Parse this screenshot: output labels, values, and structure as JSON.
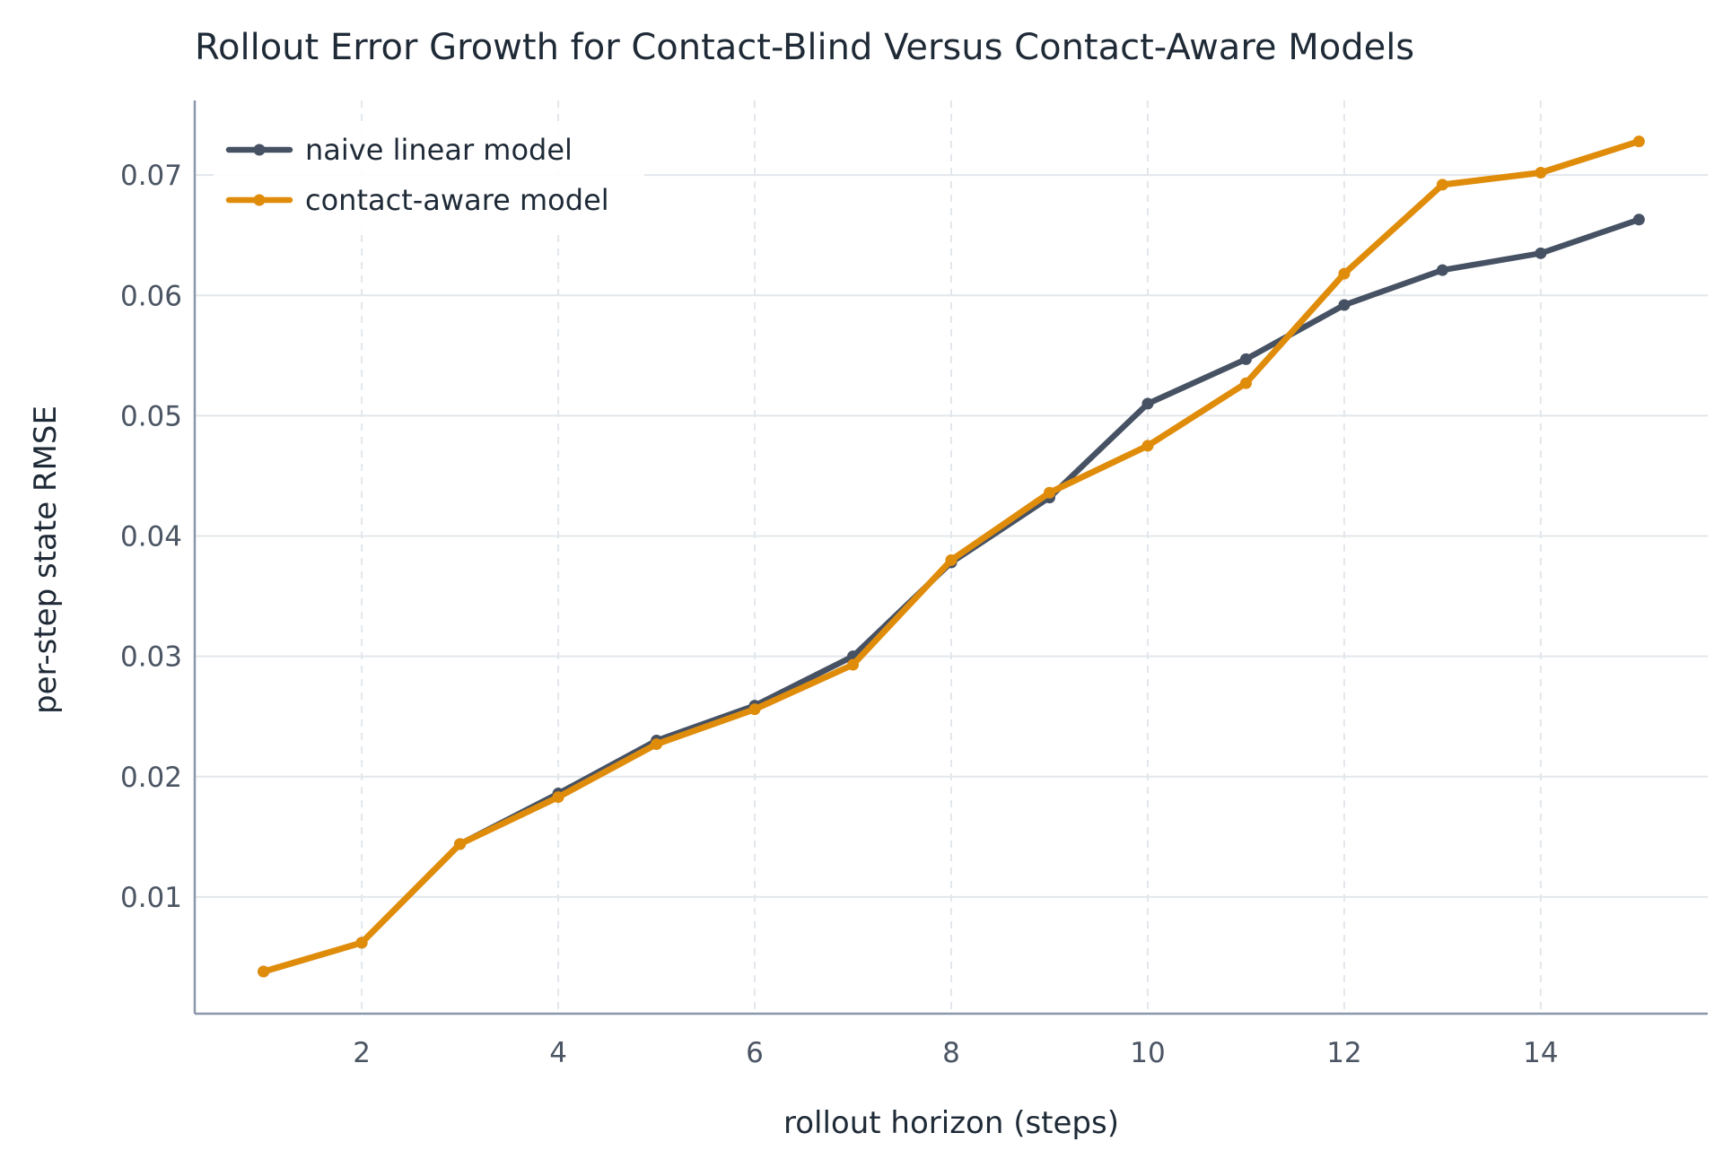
{
  "chart_data": {
    "type": "line",
    "title": "Rollout Error Growth for Contact-Blind Versus Contact-Aware Models",
    "xlabel": "rollout horizon (steps)",
    "ylabel": "per-step state RMSE",
    "x": [
      1,
      2,
      3,
      4,
      5,
      6,
      7,
      8,
      9,
      10,
      11,
      12,
      13,
      14,
      15
    ],
    "xlim": [
      0.3,
      15.7
    ],
    "ylim": [
      0.0003,
      0.0762
    ],
    "xticks": [
      2,
      4,
      6,
      8,
      10,
      12,
      14
    ],
    "yticks": [
      0.01,
      0.02,
      0.03,
      0.04,
      0.05,
      0.06,
      0.07
    ],
    "xtick_labels": [
      "2",
      "4",
      "6",
      "8",
      "10",
      "12",
      "14"
    ],
    "ytick_labels": [
      "0.01",
      "0.02",
      "0.03",
      "0.04",
      "0.05",
      "0.06",
      "0.07"
    ],
    "grid": true,
    "legend_position": "top-left",
    "series": [
      {
        "name": "naive linear model",
        "color": "#465263",
        "values": [
          0.0038,
          0.0062,
          0.0144,
          0.0186,
          0.023,
          0.0259,
          0.03,
          0.0378,
          0.0432,
          0.051,
          0.0547,
          0.0592,
          0.0621,
          0.0635,
          0.0663
        ]
      },
      {
        "name": "contact-aware model",
        "color": "#E08C0B",
        "values": [
          0.0038,
          0.0062,
          0.0144,
          0.0183,
          0.0227,
          0.0256,
          0.0293,
          0.038,
          0.0436,
          0.0475,
          0.0527,
          0.0618,
          0.0692,
          0.0702,
          0.0728
        ]
      }
    ]
  }
}
